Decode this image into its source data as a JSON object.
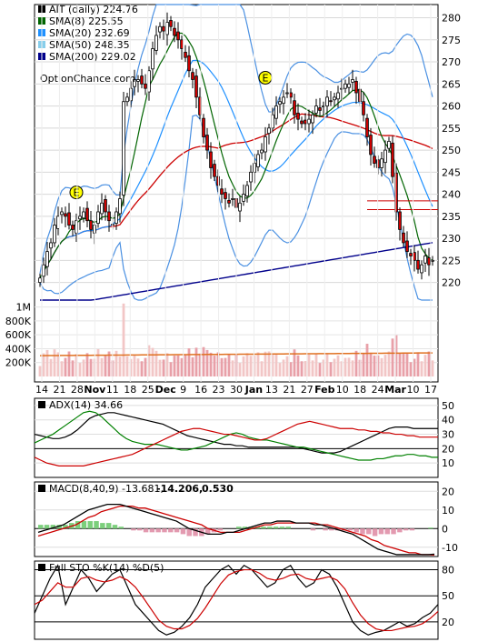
{
  "chart_data": [
    {
      "type": "candlestick",
      "panel": "price",
      "legend": [
        {
          "label": "AIT (daily) 224.76",
          "color": "#000000"
        },
        {
          "label": "SMA(8) 225.55",
          "color": "#006400"
        },
        {
          "label": "SMA(20) 232.69",
          "color": "#1e90ff"
        },
        {
          "label": "SMA(50) 248.35",
          "color": "#87ceeb"
        },
        {
          "label": "SMA(200) 229.02",
          "color": "#00008b"
        }
      ],
      "watermark": "OptionChance.com",
      "x_tick_labels": [
        "14",
        "21",
        "28",
        "Nov",
        "11",
        "18",
        "25",
        "Dec",
        "9",
        "16",
        "23",
        "30",
        "Jan",
        "13",
        "21",
        "27",
        "Feb",
        "10",
        "18",
        "24",
        "Mar",
        "10",
        "17"
      ],
      "y_ticks": [
        280,
        275,
        270,
        265,
        260,
        255,
        250,
        245,
        240,
        235,
        230,
        225,
        220
      ],
      "y_range": [
        216,
        283
      ],
      "volume_ticks": [
        "1M",
        "800K",
        "600K",
        "400K",
        "200K"
      ],
      "volume_tick_values": [
        1000000,
        800000,
        600000,
        400000,
        200000
      ],
      "volume_range": [
        0,
        1100000
      ],
      "earnings_markers": [
        {
          "label": "E",
          "date": "Oct 28",
          "price": 240
        },
        {
          "label": "E",
          "date": "Jan 27",
          "price": 266
        }
      ],
      "colors": {
        "up": "#ffffff",
        "down": "#cc0000",
        "sma8": "#006400",
        "sma20": "#1e90ff",
        "sma50": "#87ceeb",
        "sma200": "#00008b",
        "sma50_red": "#cc0000",
        "bollinger": "#4a90e2",
        "volume_up": "#f2c6c6",
        "volume_down": "#e8a0a8",
        "volume_avg": "#e07020"
      },
      "last_close": 224.76,
      "ohlc_closes": [
        221,
        224,
        227,
        229,
        233,
        235,
        236,
        235,
        233,
        232,
        234,
        235,
        236,
        234,
        232,
        233,
        236,
        238,
        236,
        234,
        233,
        236,
        239,
        261,
        262,
        264,
        266,
        266,
        265,
        264,
        268,
        273,
        276,
        278,
        277,
        279,
        278,
        276,
        275,
        273,
        271,
        268,
        266,
        262,
        258,
        253,
        250,
        246,
        244,
        242,
        240,
        239,
        238,
        239,
        237,
        238,
        240,
        242,
        245,
        247,
        249,
        250,
        253,
        255,
        258,
        260,
        261,
        262,
        263,
        262,
        258,
        257,
        256,
        256,
        257,
        258,
        260,
        259,
        260,
        262,
        261,
        262,
        263,
        264,
        265,
        265,
        266,
        263,
        261,
        258,
        253,
        249,
        247,
        246,
        248,
        250,
        252,
        244,
        236,
        232,
        229,
        227,
        226,
        225,
        223,
        224,
        226,
        224,
        225
      ]
    },
    {
      "type": "line",
      "panel": "ADX",
      "title": "ADX(14) 34.66",
      "y_ticks": [
        50,
        40,
        30,
        20,
        10
      ],
      "y_range": [
        0,
        55
      ],
      "series": [
        {
          "color": "#000000",
          "values": [
            30,
            29,
            28,
            27,
            27,
            28,
            30,
            33,
            37,
            41,
            43,
            44,
            45,
            45,
            44,
            43,
            42,
            41,
            40,
            39,
            38,
            37,
            35,
            33,
            31,
            29,
            28,
            27,
            26,
            25,
            24,
            23,
            23,
            22,
            22,
            21,
            21,
            21,
            21,
            21,
            21,
            21,
            21,
            21,
            20,
            19,
            18,
            17,
            17,
            17,
            18,
            20,
            22,
            24,
            26,
            28,
            30,
            32,
            34,
            35,
            35,
            35,
            34,
            34,
            34,
            34,
            34
          ]
        },
        {
          "color": "#008000",
          "values": [
            24,
            26,
            28,
            30,
            33,
            36,
            39,
            42,
            45,
            46,
            45,
            42,
            38,
            34,
            30,
            27,
            25,
            24,
            23,
            23,
            23,
            22,
            21,
            20,
            19,
            19,
            20,
            21,
            22,
            24,
            26,
            28,
            30,
            31,
            30,
            28,
            27,
            26,
            26,
            25,
            24,
            23,
            22,
            21,
            21,
            20,
            19,
            18,
            17,
            16,
            15,
            14,
            13,
            12,
            12,
            12,
            13,
            13,
            14,
            15,
            15,
            16,
            16,
            15,
            15,
            14,
            14
          ]
        },
        {
          "color": "#cc0000",
          "values": [
            14,
            12,
            10,
            9,
            8,
            8,
            8,
            8,
            8,
            9,
            10,
            11,
            12,
            13,
            14,
            15,
            16,
            18,
            20,
            22,
            24,
            26,
            28,
            30,
            32,
            33,
            34,
            34,
            33,
            32,
            31,
            30,
            30,
            29,
            28,
            27,
            26,
            26,
            27,
            29,
            31,
            33,
            35,
            37,
            38,
            39,
            38,
            37,
            36,
            35,
            34,
            34,
            34,
            33,
            33,
            32,
            32,
            31,
            31,
            30,
            30,
            29,
            29,
            28,
            28,
            28,
            28
          ]
        }
      ]
    },
    {
      "type": "bar+line",
      "panel": "MACD",
      "title": "MACD(8,40,9) -13.681,",
      "values_text": [
        "-14.206,",
        "0.530"
      ],
      "value_colors": [
        "#cc0000",
        "#1a5fd0"
      ],
      "y_ticks": [
        20,
        10,
        0,
        -10
      ],
      "y_range": [
        -15,
        25
      ],
      "macd": [
        -2,
        -1,
        0,
        1,
        2,
        4,
        6,
        8,
        10,
        11,
        12,
        13,
        13,
        13,
        12,
        11,
        10,
        9,
        8,
        7,
        6,
        5,
        4,
        2,
        0,
        -1,
        -2,
        -3,
        -3,
        -3,
        -2,
        -2,
        -1,
        0,
        1,
        2,
        3,
        3,
        4,
        4,
        4,
        3,
        3,
        3,
        2,
        2,
        1,
        0,
        -1,
        -2,
        -3,
        -5,
        -7,
        -9,
        -11,
        -12,
        -13,
        -14,
        -14,
        -14,
        -14,
        -14,
        -14,
        -13.7
      ],
      "signal": [
        -4,
        -3,
        -2,
        -1,
        0,
        1,
        2,
        4,
        6,
        7,
        9,
        10,
        11,
        12,
        12,
        12,
        11,
        11,
        10,
        9,
        8,
        7,
        6,
        5,
        4,
        3,
        2,
        0,
        -1,
        -2,
        -2,
        -2,
        -2,
        -1,
        0,
        1,
        2,
        2,
        3,
        3,
        3,
        3,
        3,
        3,
        3,
        2,
        2,
        1,
        0,
        -1,
        -2,
        -3,
        -4,
        -6,
        -7,
        -9,
        -10,
        -11,
        -12,
        -13,
        -13,
        -14,
        -14,
        -14.2
      ],
      "histogram": [
        2,
        2,
        2,
        2,
        2,
        3,
        4,
        4,
        4,
        4,
        3,
        3,
        2,
        1,
        0,
        -1,
        -1,
        -2,
        -2,
        -2,
        -2,
        -2,
        -2,
        -3,
        -4,
        -4,
        -4,
        -3,
        -2,
        -1,
        0,
        0,
        1,
        1,
        1,
        1,
        1,
        1,
        1,
        1,
        1,
        0,
        0,
        0,
        -1,
        0,
        -1,
        -1,
        -1,
        -1,
        -1,
        -2,
        -3,
        -3,
        -4,
        -3,
        -3,
        -3,
        -2,
        -1,
        -1,
        0,
        0,
        0.53
      ]
    },
    {
      "type": "line",
      "panel": "Full STO",
      "title": "Full STO %K(14) %D(5)",
      "y_ticks": [
        80,
        50,
        20
      ],
      "y_range": [
        0,
        90
      ],
      "series": [
        {
          "color": "#000000",
          "values": [
            30,
            50,
            70,
            85,
            40,
            60,
            80,
            70,
            55,
            65,
            75,
            80,
            60,
            40,
            30,
            20,
            10,
            5,
            8,
            15,
            25,
            40,
            60,
            70,
            80,
            85,
            75,
            85,
            80,
            70,
            60,
            65,
            80,
            85,
            70,
            60,
            65,
            80,
            75,
            60,
            40,
            20,
            10,
            5,
            8,
            10,
            15,
            20,
            15,
            18,
            25,
            30,
            40
          ]
        },
        {
          "color": "#cc0000",
          "values": [
            40,
            45,
            55,
            65,
            60,
            60,
            70,
            72,
            68,
            66,
            68,
            72,
            68,
            60,
            48,
            35,
            22,
            15,
            12,
            12,
            16,
            24,
            36,
            50,
            64,
            74,
            78,
            80,
            80,
            76,
            70,
            68,
            70,
            74,
            75,
            70,
            68,
            70,
            72,
            68,
            58,
            42,
            28,
            18,
            12,
            10,
            10,
            12,
            14,
            15,
            18,
            24,
            32
          ]
        }
      ]
    }
  ]
}
